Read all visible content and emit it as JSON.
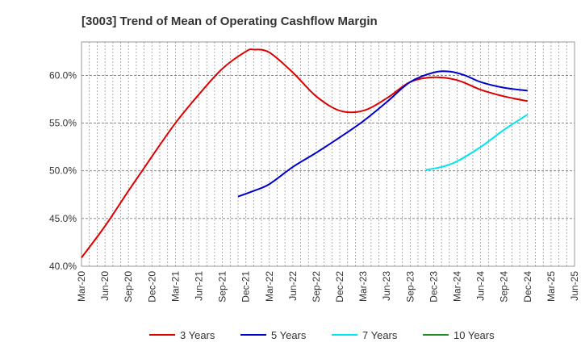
{
  "chart_data": {
    "type": "line",
    "title": "[3003]  Trend of Mean of Operating Cashflow Margin",
    "xlabel": "",
    "ylabel": "",
    "x_ticks": [
      "Mar-20",
      "Jun-20",
      "Sep-20",
      "Dec-20",
      "Mar-21",
      "Jun-21",
      "Sep-21",
      "Dec-21",
      "Mar-22",
      "Jun-22",
      "Sep-22",
      "Dec-22",
      "Mar-23",
      "Jun-23",
      "Sep-23",
      "Dec-23",
      "Mar-24",
      "Jun-24",
      "Sep-24",
      "Dec-24",
      "Mar-25",
      "Jun-25"
    ],
    "y_ticks": [
      "40.0%",
      "45.0%",
      "50.0%",
      "55.0%",
      "60.0%"
    ],
    "ylim": [
      40.0,
      63.5
    ],
    "grid": true,
    "legend_position": "bottom",
    "series": [
      {
        "name": "3 Years",
        "color": "#dd0000",
        "points": [
          [
            "Mar-20",
            40.9
          ],
          [
            "Jun-20",
            44.2
          ],
          [
            "Sep-20",
            47.9
          ],
          [
            "Dec-20",
            51.5
          ],
          [
            "Mar-21",
            55.0
          ],
          [
            "Jun-21",
            58.0
          ],
          [
            "Sep-21",
            60.7
          ],
          [
            "Dec-21",
            62.5
          ],
          [
            "Jan-22",
            62.7
          ],
          [
            "Mar-22",
            62.4
          ],
          [
            "Jun-22",
            60.3
          ],
          [
            "Sep-22",
            57.8
          ],
          [
            "Dec-22",
            56.3
          ],
          [
            "Mar-23",
            56.3
          ],
          [
            "Jun-23",
            57.6
          ],
          [
            "Sep-23",
            59.3
          ],
          [
            "Dec-23",
            59.8
          ],
          [
            "Mar-24",
            59.5
          ],
          [
            "Jun-24",
            58.5
          ],
          [
            "Sep-24",
            57.8
          ],
          [
            "Dec-24",
            57.3
          ]
        ]
      },
      {
        "name": "5 Years",
        "color": "#0000cc",
        "points": [
          [
            "Nov-21",
            47.3
          ],
          [
            "Jan-22",
            47.9
          ],
          [
            "Mar-22",
            48.6
          ],
          [
            "Jun-22",
            50.4
          ],
          [
            "Sep-22",
            51.9
          ],
          [
            "Dec-22",
            53.5
          ],
          [
            "Mar-23",
            55.2
          ],
          [
            "Jun-23",
            57.2
          ],
          [
            "Sep-23",
            59.3
          ],
          [
            "Dec-23",
            60.3
          ],
          [
            "Feb-24",
            60.4
          ],
          [
            "Apr-24",
            60.0
          ],
          [
            "Jun-24",
            59.3
          ],
          [
            "Sep-24",
            58.7
          ],
          [
            "Dec-24",
            58.4
          ]
        ]
      },
      {
        "name": "7 Years",
        "color": "#00e5ee",
        "points": [
          [
            "Nov-23",
            50.1
          ],
          [
            "Jan-24",
            50.4
          ],
          [
            "Mar-24",
            51.0
          ],
          [
            "Jun-24",
            52.5
          ],
          [
            "Sep-24",
            54.3
          ],
          [
            "Dec-24",
            55.9
          ]
        ]
      },
      {
        "name": "10 Years",
        "color": "#228b22",
        "points": []
      }
    ]
  }
}
